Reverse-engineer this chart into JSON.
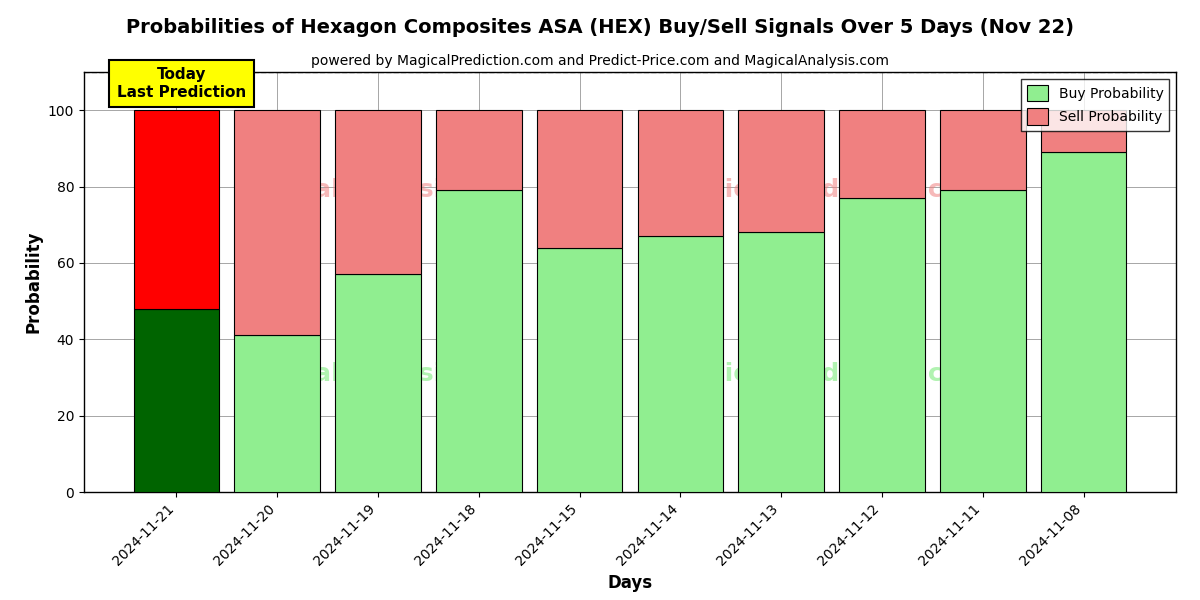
{
  "title": "Probabilities of Hexagon Composites ASA (HEX) Buy/Sell Signals Over 5 Days (Nov 22)",
  "subtitle": "powered by MagicalPrediction.com and Predict-Price.com and MagicalAnalysis.com",
  "xlabel": "Days",
  "ylabel": "Probability",
  "categories": [
    "2024-11-21",
    "2024-11-20",
    "2024-11-19",
    "2024-11-18",
    "2024-11-15",
    "2024-11-14",
    "2024-11-13",
    "2024-11-12",
    "2024-11-11",
    "2024-11-08"
  ],
  "buy_values": [
    48,
    41,
    57,
    79,
    64,
    67,
    68,
    77,
    79,
    89
  ],
  "sell_values": [
    52,
    59,
    43,
    21,
    36,
    33,
    32,
    23,
    21,
    11
  ],
  "today_buy_color": "#006400",
  "today_sell_color": "#FF0000",
  "buy_color": "#90EE90",
  "sell_color": "#F08080",
  "today_annotation": "Today\nLast Prediction",
  "today_annotation_bg": "#FFFF00",
  "ylim": [
    0,
    110
  ],
  "yticks": [
    0,
    20,
    40,
    60,
    80,
    100
  ],
  "dashed_line_y": 110,
  "legend_buy_label": "Buy Probability",
  "legend_sell_label": "Sell Probability",
  "background_color": "#ffffff",
  "bar_width": 0.85
}
